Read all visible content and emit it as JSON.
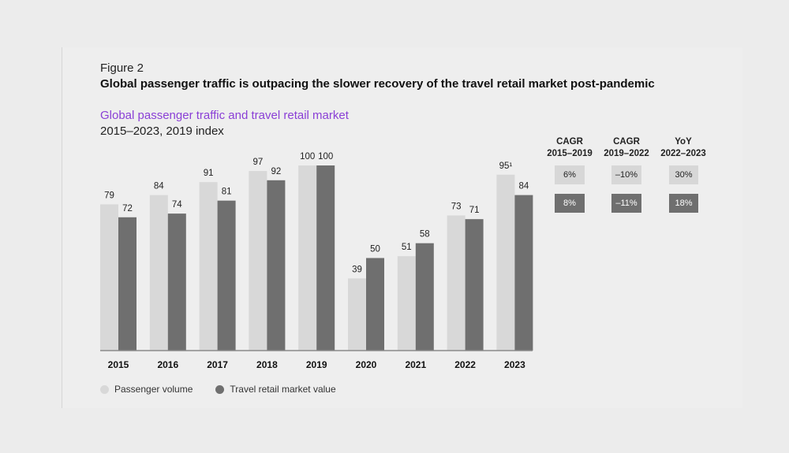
{
  "figure": {
    "label": "Figure 2",
    "title": "Global passenger traffic is outpacing the slower recovery of the travel retail market post-pandemic"
  },
  "chart_data": {
    "type": "bar",
    "title": "Global passenger traffic and travel retail market",
    "subtitle": "2015–2023, 2019 index",
    "categories": [
      "2015",
      "2016",
      "2017",
      "2018",
      "2019",
      "2020",
      "2021",
      "2022",
      "2023"
    ],
    "series": [
      {
        "name": "Passenger volume",
        "color": "#d8d8d8",
        "values": [
          79,
          84,
          91,
          97,
          100,
          39,
          51,
          73,
          95
        ],
        "labels": [
          "79",
          "84",
          "91",
          "97",
          "100",
          "39",
          "51",
          "73",
          "95¹"
        ]
      },
      {
        "name": "Travel retail market value",
        "color": "#6f6f6f",
        "values": [
          72,
          74,
          81,
          92,
          100,
          50,
          58,
          71,
          84
        ],
        "labels": [
          "72",
          "74",
          "81",
          "92",
          "100",
          "50",
          "58",
          "71",
          "84"
        ]
      }
    ],
    "ylim": [
      0,
      100
    ],
    "xlabel": "",
    "ylabel": "",
    "legend_position": "bottom-left"
  },
  "growth_table": {
    "columns": [
      {
        "line1": "CAGR",
        "line2": "2015–2019",
        "passenger": "6%",
        "retail": "8%"
      },
      {
        "line1": "CAGR",
        "line2": "2019–2022",
        "passenger": "–10%",
        "retail": "–11%"
      },
      {
        "line1": "YoY",
        "line2": "2022–2023",
        "passenger": "30%",
        "retail": "18%"
      }
    ]
  }
}
